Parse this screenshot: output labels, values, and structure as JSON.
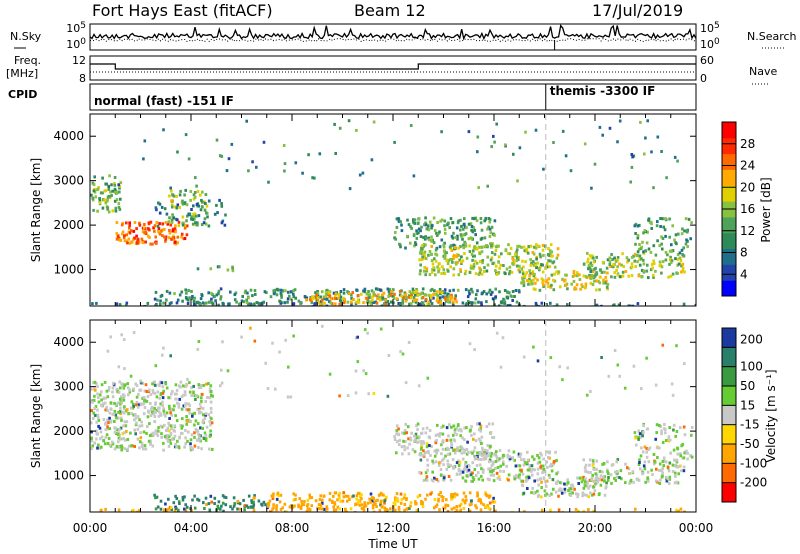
{
  "header": {
    "station": "Fort Hays East (fitACF)",
    "beam": "Beam 12",
    "date": "17/Jul/2019"
  },
  "side_labels": {
    "nsky": "N.Sky",
    "nsearch": "N.Search",
    "freq_line1": "Freq.",
    "freq_line2": "[MHz]",
    "nave": "Nave",
    "cpid": "CPID"
  },
  "status_panels": {
    "noise_ticks_left": [
      "10^5",
      "10^0"
    ],
    "noise_ticks_right": [
      "10^5",
      "10^0"
    ],
    "freq_ticks_left": [
      "12",
      "8"
    ],
    "nave_ticks_right": [
      "60",
      "0"
    ],
    "cpid_segments": [
      {
        "label": "normal (fast) -151 IF",
        "start_hour": 0,
        "end_hour": 18.05
      },
      {
        "label": "themis -3300 IF",
        "start_hour": 18.05,
        "end_hour": 24
      }
    ],
    "freq_trace": [
      {
        "start_hour": 0,
        "end_hour": 1.0,
        "level": 0.7
      },
      {
        "start_hour": 1.0,
        "end_hour": 13.0,
        "level": 0.45
      },
      {
        "start_hour": 13.0,
        "end_hour": 18.4,
        "level": 0.7
      },
      {
        "start_hour": 18.4,
        "end_hour": 24,
        "level": 0.7
      }
    ]
  },
  "chart_data": [
    {
      "type": "heatmap",
      "name": "power",
      "x_unit": "hours UT",
      "xlim": [
        0,
        24
      ],
      "ylim": [
        180,
        4500
      ],
      "ylabel": "Slant Range [km]",
      "xlabel": "",
      "yticks": [
        1000,
        2000,
        3000,
        4000
      ],
      "colorbar": {
        "label": "Power [dB]",
        "range": [
          0,
          32
        ],
        "ticks": [
          4,
          8,
          12,
          16,
          20,
          24,
          28
        ],
        "colors": [
          "#0000ff",
          "#2244aa",
          "#1f6f8a",
          "#2e8b57",
          "#4fa25a",
          "#88c040",
          "#e0d000",
          "#ffaa00",
          "#ff6a00",
          "#ff2a00",
          "#ff0000"
        ]
      },
      "scatter_regions": [
        {
          "hours": [
            0.0,
            1.2
          ],
          "range_km": [
            2300,
            3150
          ],
          "value": 14,
          "density": 0.55
        },
        {
          "hours": [
            1.0,
            3.8
          ],
          "range_km": [
            1600,
            2100
          ],
          "value": 25,
          "density": 0.75
        },
        {
          "hours": [
            3.0,
            4.6
          ],
          "range_km": [
            2000,
            2800
          ],
          "value": 16,
          "density": 0.45
        },
        {
          "hours": [
            2.5,
            5.5
          ],
          "range_km": [
            2000,
            2600
          ],
          "value": 8,
          "density": 0.2
        },
        {
          "hours": [
            4.2,
            5.8
          ],
          "range_km": [
            1000,
            1100
          ],
          "value": 12,
          "density": 0.4
        },
        {
          "hours": [
            0.0,
            24.0
          ],
          "range_km": [
            180,
            280
          ],
          "value": 8,
          "density": 0.3
        },
        {
          "hours": [
            2.5,
            17.0
          ],
          "range_km": [
            250,
            600
          ],
          "value": 10,
          "density": 0.55
        },
        {
          "hours": [
            8.5,
            14.5
          ],
          "range_km": [
            250,
            550
          ],
          "value": 20,
          "density": 0.6
        },
        {
          "hours": [
            12.0,
            16.0
          ],
          "range_km": [
            1500,
            2200
          ],
          "value": 12,
          "density": 0.5
        },
        {
          "hours": [
            13.0,
            18.5
          ],
          "range_km": [
            900,
            1600
          ],
          "value": 16,
          "density": 0.6
        },
        {
          "hours": [
            17.0,
            20.5
          ],
          "range_km": [
            550,
            1000
          ],
          "value": 18,
          "density": 0.55
        },
        {
          "hours": [
            19.5,
            23.5
          ],
          "range_km": [
            850,
            1400
          ],
          "value": 16,
          "density": 0.55
        },
        {
          "hours": [
            21.5,
            23.8
          ],
          "range_km": [
            1400,
            2200
          ],
          "value": 12,
          "density": 0.35
        },
        {
          "hours": [
            0.5,
            23.5
          ],
          "range_km": [
            2800,
            4400
          ],
          "value": 10,
          "density": 0.02
        }
      ]
    },
    {
      "type": "heatmap",
      "name": "velocity",
      "x_unit": "hours UT",
      "xlim": [
        0,
        24
      ],
      "ylim": [
        180,
        4500
      ],
      "ylabel": "Slant Range [km]",
      "xlabel": "Time UT",
      "xticks": [
        "00:00",
        "04:00",
        "08:00",
        "12:00",
        "16:00",
        "20:00",
        "00:00"
      ],
      "yticks": [
        1000,
        2000,
        3000,
        4000
      ],
      "colorbar": {
        "label": "Velocity [m s⁻¹]",
        "ticks": [
          "200",
          "100",
          "50",
          "15",
          "-15",
          "-50",
          "-100",
          "-200"
        ],
        "colors": [
          "#1a3aa0",
          "#2a7f6a",
          "#3a9a40",
          "#66cc33",
          "#c8c8c8",
          "#ffd700",
          "#ffa500",
          "#ff6a00",
          "#ff0000"
        ]
      },
      "scatter_regions": [
        {
          "hours": [
            0.0,
            4.8
          ],
          "range_km": [
            1600,
            3150
          ],
          "value": 0,
          "density": 0.6
        },
        {
          "hours": [
            0.0,
            24.0
          ],
          "range_km": [
            180,
            280
          ],
          "value": -60,
          "density": 0.3
        },
        {
          "hours": [
            2.5,
            7.0
          ],
          "range_km": [
            250,
            600
          ],
          "value": 60,
          "density": 0.45
        },
        {
          "hours": [
            7.0,
            16.0
          ],
          "range_km": [
            250,
            650
          ],
          "value": -60,
          "density": 0.6
        },
        {
          "hours": [
            12.0,
            16.0
          ],
          "range_km": [
            1500,
            2200
          ],
          "value": 0,
          "density": 0.5
        },
        {
          "hours": [
            13.0,
            18.5
          ],
          "range_km": [
            900,
            1600
          ],
          "value": 0,
          "density": 0.6
        },
        {
          "hours": [
            17.0,
            20.5
          ],
          "range_km": [
            550,
            1000
          ],
          "value": 0,
          "density": 0.55
        },
        {
          "hours": [
            19.5,
            23.5
          ],
          "range_km": [
            850,
            1400
          ],
          "value": 0,
          "density": 0.55
        },
        {
          "hours": [
            21.5,
            23.8
          ],
          "range_km": [
            1400,
            2200
          ],
          "value": 0,
          "density": 0.35
        },
        {
          "hours": [
            0.5,
            23.5
          ],
          "range_km": [
            2800,
            4400
          ],
          "value": 0,
          "density": 0.02
        }
      ]
    }
  ]
}
